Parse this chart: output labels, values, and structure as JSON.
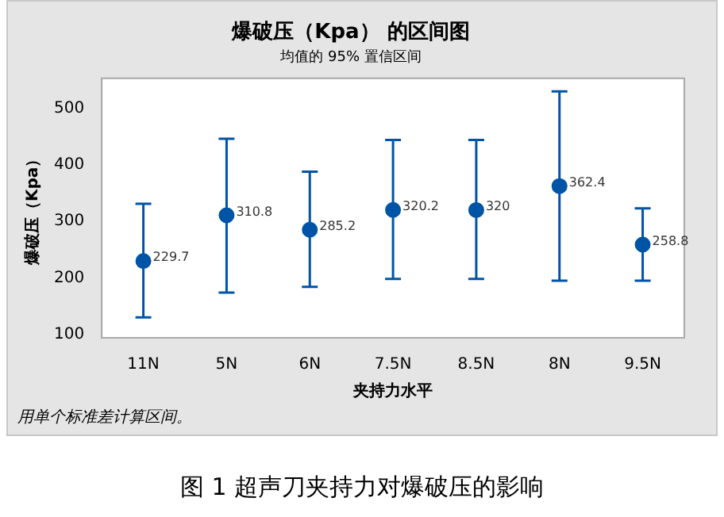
{
  "chart_data": {
    "type": "scatter",
    "title": "爆破压（Kpa） 的区间图",
    "subtitle": "均值的 95% 置信区间",
    "xlabel": "夹持力水平",
    "ylabel": "爆破压（Kpa）",
    "annotations": [
      "用单个标准差计算区间。",
      "图 1 超声刀夹持力对爆破压的影响"
    ],
    "categories": [
      "11N",
      "5N",
      "6N",
      "7.5N",
      "8.5N",
      "8N",
      "9.5N"
    ],
    "series": [
      {
        "color": "#0054a6",
        "values": [
          229.7,
          310.8,
          285.2,
          320.2,
          320,
          362.4,
          258.8
        ],
        "errors": [
          [
            130,
            331
          ],
          [
            174,
            446
          ],
          [
            184,
            388
          ],
          [
            198,
            444
          ],
          [
            198,
            444
          ],
          [
            195,
            530
          ],
          [
            195,
            323
          ]
        ]
      }
    ],
    "data_labels": true,
    "marker": "circle",
    "grid": false,
    "legend": false,
    "ylim": [
      94,
      553
    ],
    "yticks": [
      100,
      200,
      300,
      400,
      500
    ]
  }
}
